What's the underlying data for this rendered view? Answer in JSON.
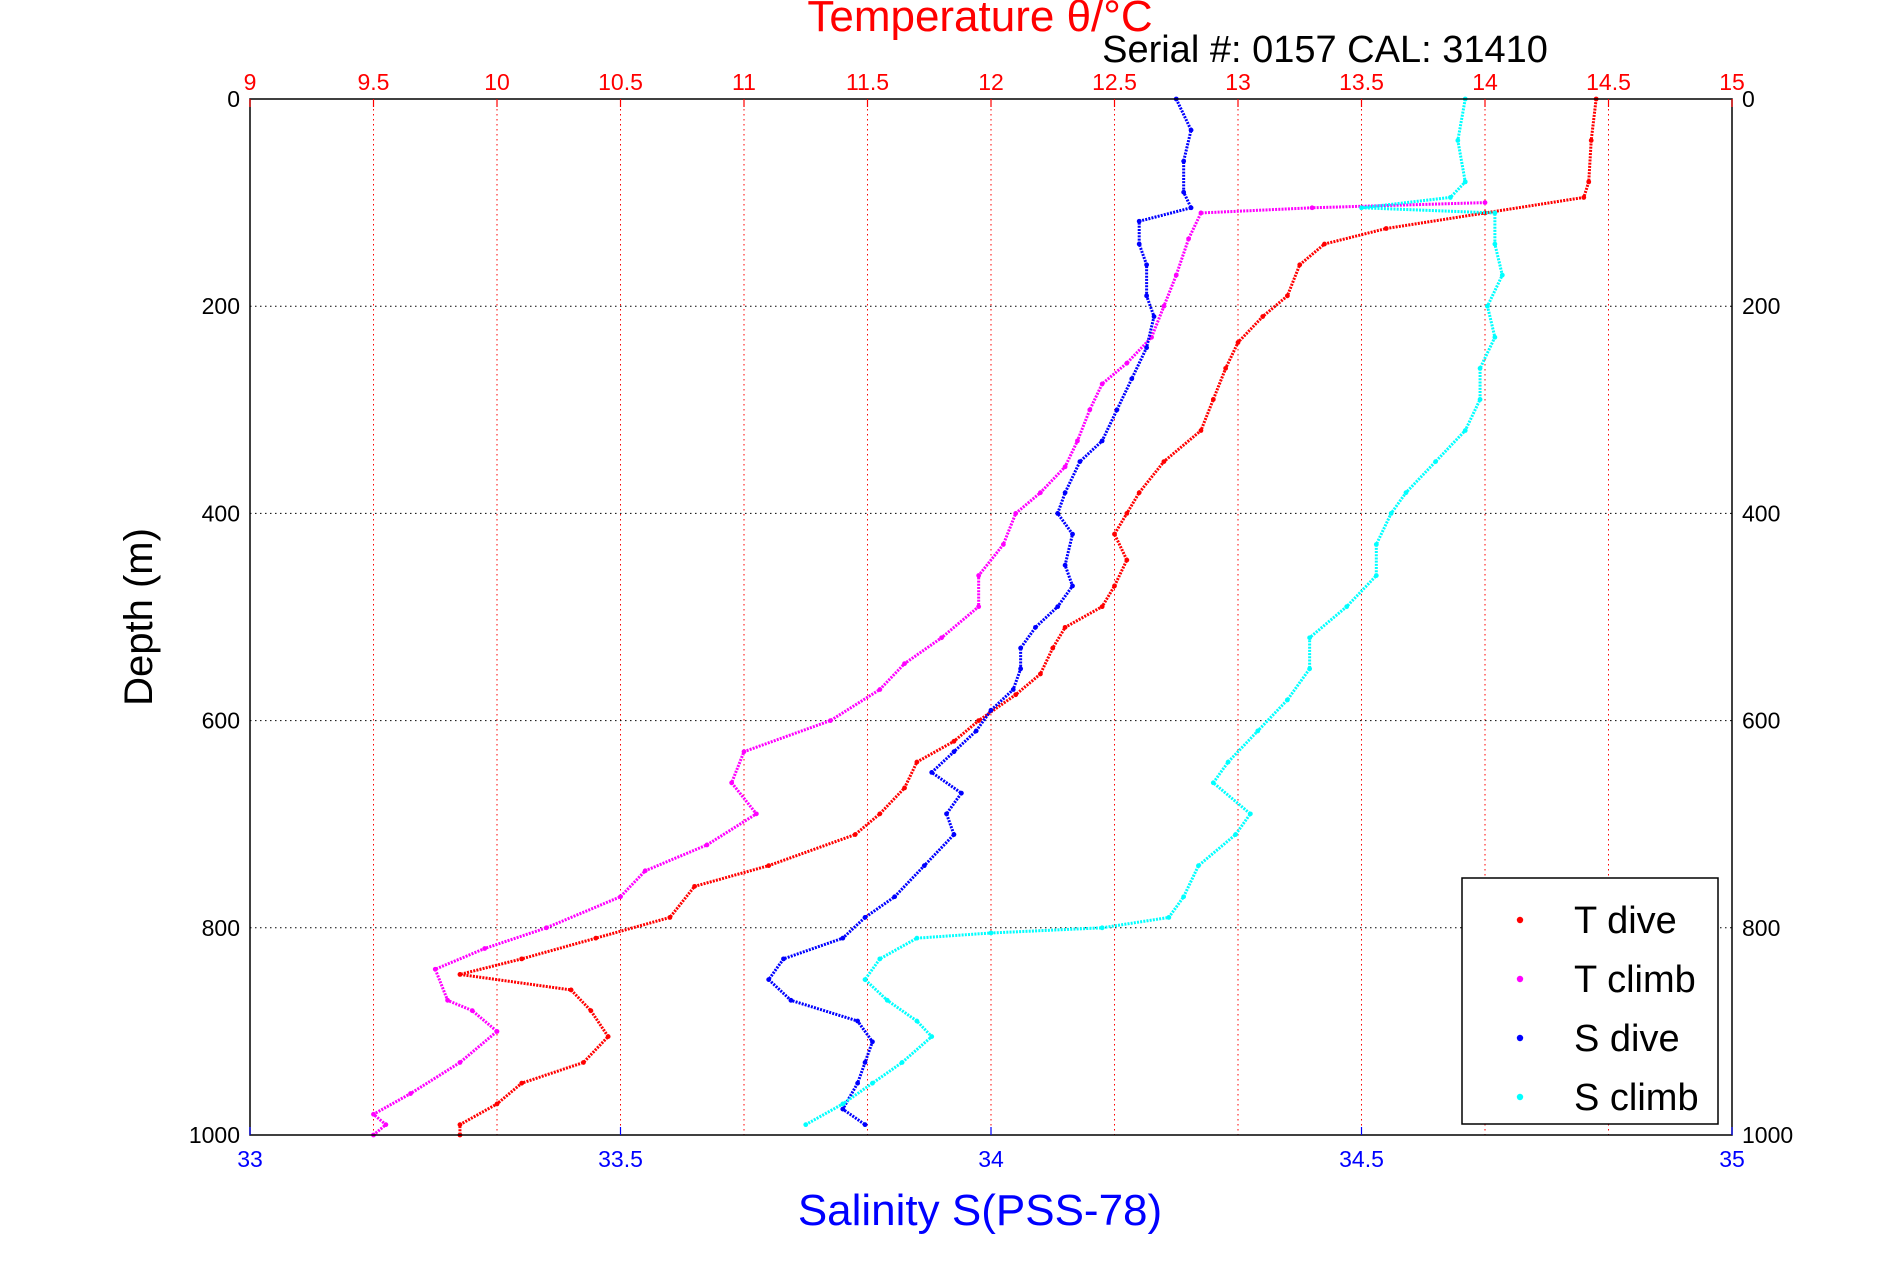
{
  "chart_data": {
    "type": "scatter",
    "title": "Temperature θ/°C",
    "subtitle": "Serial #: 0157  CAL: 31410",
    "xlabel": "Salinity S(PSS-78)",
    "ylabel": "Depth (m)",
    "x_top": {
      "label": "Temperature θ/°C",
      "range": [
        9,
        15
      ],
      "ticks": [
        "9",
        "9.5",
        "10",
        "10.5",
        "11",
        "11.5",
        "12",
        "12.5",
        "13",
        "13.5",
        "14",
        "14.5",
        "15"
      ],
      "color": "#ff0000"
    },
    "x_bottom": {
      "label": "Salinity S(PSS-78)",
      "range": [
        33,
        35
      ],
      "ticks": [
        "33",
        "33.5",
        "34",
        "34.5",
        "35"
      ],
      "color": "#0000ff"
    },
    "y": {
      "range": [
        0,
        1000
      ],
      "reversed": true,
      "ticks": [
        "0",
        "200",
        "400",
        "600",
        "800",
        "1000"
      ]
    },
    "grid": true,
    "legend_position": "bottom-right",
    "series": [
      {
        "name": "T dive",
        "axis": "temperature",
        "color": "#ff0000",
        "points": [
          [
            14.45,
            0
          ],
          [
            14.43,
            40
          ],
          [
            14.42,
            80
          ],
          [
            14.4,
            95
          ],
          [
            14.0,
            110
          ],
          [
            13.6,
            125
          ],
          [
            13.35,
            140
          ],
          [
            13.25,
            160
          ],
          [
            13.2,
            190
          ],
          [
            13.1,
            210
          ],
          [
            13.0,
            235
          ],
          [
            12.95,
            260
          ],
          [
            12.9,
            290
          ],
          [
            12.85,
            320
          ],
          [
            12.7,
            350
          ],
          [
            12.6,
            380
          ],
          [
            12.55,
            400
          ],
          [
            12.5,
            420
          ],
          [
            12.55,
            445
          ],
          [
            12.5,
            470
          ],
          [
            12.45,
            490
          ],
          [
            12.3,
            510
          ],
          [
            12.25,
            530
          ],
          [
            12.2,
            555
          ],
          [
            12.1,
            575
          ],
          [
            11.95,
            600
          ],
          [
            11.85,
            620
          ],
          [
            11.7,
            640
          ],
          [
            11.65,
            665
          ],
          [
            11.55,
            690
          ],
          [
            11.45,
            710
          ],
          [
            11.1,
            740
          ],
          [
            10.8,
            760
          ],
          [
            10.7,
            790
          ],
          [
            10.4,
            810
          ],
          [
            10.1,
            830
          ],
          [
            9.85,
            845
          ],
          [
            10.3,
            860
          ],
          [
            10.38,
            880
          ],
          [
            10.45,
            905
          ],
          [
            10.35,
            930
          ],
          [
            10.1,
            950
          ],
          [
            10.0,
            970
          ],
          [
            9.85,
            990
          ],
          [
            9.85,
            1000
          ]
        ]
      },
      {
        "name": "T climb",
        "axis": "temperature",
        "color": "#ff00ff",
        "points": [
          [
            14.0,
            100
          ],
          [
            13.3,
            105
          ],
          [
            12.85,
            110
          ],
          [
            12.8,
            135
          ],
          [
            12.75,
            170
          ],
          [
            12.7,
            200
          ],
          [
            12.65,
            230
          ],
          [
            12.55,
            255
          ],
          [
            12.45,
            275
          ],
          [
            12.4,
            300
          ],
          [
            12.35,
            330
          ],
          [
            12.3,
            355
          ],
          [
            12.2,
            380
          ],
          [
            12.1,
            400
          ],
          [
            12.05,
            430
          ],
          [
            11.95,
            460
          ],
          [
            11.95,
            490
          ],
          [
            11.8,
            520
          ],
          [
            11.65,
            545
          ],
          [
            11.55,
            570
          ],
          [
            11.35,
            600
          ],
          [
            11.0,
            630
          ],
          [
            10.95,
            660
          ],
          [
            11.05,
            690
          ],
          [
            10.85,
            720
          ],
          [
            10.6,
            745
          ],
          [
            10.5,
            770
          ],
          [
            10.2,
            800
          ],
          [
            9.95,
            820
          ],
          [
            9.75,
            840
          ],
          [
            9.8,
            870
          ],
          [
            9.9,
            880
          ],
          [
            10.0,
            900
          ],
          [
            9.85,
            930
          ],
          [
            9.65,
            960
          ],
          [
            9.5,
            980
          ],
          [
            9.55,
            990
          ],
          [
            9.5,
            1000
          ]
        ]
      },
      {
        "name": "S dive",
        "axis": "salinity",
        "color": "#0000ff",
        "points": [
          [
            34.25,
            0
          ],
          [
            34.27,
            30
          ],
          [
            34.26,
            60
          ],
          [
            34.26,
            90
          ],
          [
            34.27,
            105
          ],
          [
            34.2,
            118
          ],
          [
            34.2,
            140
          ],
          [
            34.21,
            160
          ],
          [
            34.21,
            190
          ],
          [
            34.22,
            210
          ],
          [
            34.21,
            240
          ],
          [
            34.19,
            270
          ],
          [
            34.17,
            300
          ],
          [
            34.15,
            330
          ],
          [
            34.12,
            350
          ],
          [
            34.1,
            380
          ],
          [
            34.09,
            400
          ],
          [
            34.11,
            420
          ],
          [
            34.1,
            450
          ],
          [
            34.11,
            470
          ],
          [
            34.09,
            490
          ],
          [
            34.06,
            510
          ],
          [
            34.04,
            530
          ],
          [
            34.04,
            550
          ],
          [
            34.03,
            570
          ],
          [
            34.0,
            590
          ],
          [
            33.98,
            610
          ],
          [
            33.95,
            630
          ],
          [
            33.92,
            650
          ],
          [
            33.96,
            670
          ],
          [
            33.94,
            690
          ],
          [
            33.95,
            710
          ],
          [
            33.91,
            740
          ],
          [
            33.87,
            770
          ],
          [
            33.83,
            790
          ],
          [
            33.8,
            810
          ],
          [
            33.72,
            830
          ],
          [
            33.7,
            850
          ],
          [
            33.73,
            870
          ],
          [
            33.82,
            890
          ],
          [
            33.84,
            910
          ],
          [
            33.83,
            930
          ],
          [
            33.82,
            950
          ],
          [
            33.8,
            975
          ],
          [
            33.83,
            990
          ]
        ]
      },
      {
        "name": "S climb",
        "axis": "salinity",
        "color": "#00ffff",
        "points": [
          [
            34.64,
            0
          ],
          [
            34.63,
            40
          ],
          [
            34.64,
            80
          ],
          [
            34.62,
            95
          ],
          [
            34.5,
            105
          ],
          [
            34.68,
            110
          ],
          [
            34.68,
            140
          ],
          [
            34.69,
            170
          ],
          [
            34.67,
            200
          ],
          [
            34.68,
            230
          ],
          [
            34.66,
            260
          ],
          [
            34.66,
            290
          ],
          [
            34.64,
            320
          ],
          [
            34.6,
            350
          ],
          [
            34.56,
            380
          ],
          [
            34.54,
            400
          ],
          [
            34.52,
            430
          ],
          [
            34.52,
            460
          ],
          [
            34.48,
            490
          ],
          [
            34.43,
            520
          ],
          [
            34.43,
            550
          ],
          [
            34.4,
            580
          ],
          [
            34.36,
            610
          ],
          [
            34.32,
            640
          ],
          [
            34.3,
            660
          ],
          [
            34.35,
            690
          ],
          [
            34.33,
            710
          ],
          [
            34.28,
            740
          ],
          [
            34.26,
            770
          ],
          [
            34.24,
            790
          ],
          [
            34.15,
            800
          ],
          [
            34.0,
            805
          ],
          [
            33.9,
            810
          ],
          [
            33.85,
            830
          ],
          [
            33.83,
            850
          ],
          [
            33.86,
            870
          ],
          [
            33.9,
            890
          ],
          [
            33.92,
            905
          ],
          [
            33.88,
            930
          ],
          [
            33.84,
            950
          ],
          [
            33.8,
            970
          ],
          [
            33.75,
            990
          ]
        ]
      }
    ]
  }
}
